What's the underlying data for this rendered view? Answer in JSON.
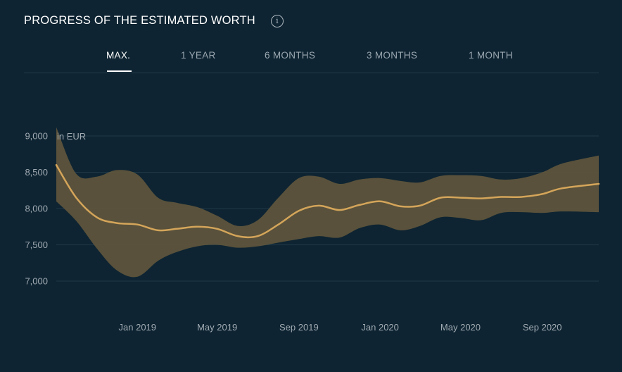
{
  "header": {
    "title": "PROGRESS OF THE ESTIMATED WORTH",
    "info_icon": "info-icon"
  },
  "tabs": [
    {
      "label": "MAX.",
      "active": true
    },
    {
      "label": "1 YEAR",
      "active": false
    },
    {
      "label": "6 MONTHS",
      "active": false
    },
    {
      "label": "3 MONTHS",
      "active": false
    },
    {
      "label": "1 MONTH",
      "active": false
    }
  ],
  "colors": {
    "background": "#0e2432",
    "line": "#d4a55a",
    "band": "#5e543c",
    "gridline": "#203947",
    "axis_text": "#a0aab2"
  },
  "chart_data": {
    "type": "area",
    "unit_label": "in EUR",
    "ylim": [
      6500,
      9400
    ],
    "yticks": [
      {
        "value": 9000,
        "label": "9,000"
      },
      {
        "value": 8500,
        "label": "8,500"
      },
      {
        "value": 8000,
        "label": "8,000"
      },
      {
        "value": 7500,
        "label": "7,500"
      },
      {
        "value": 7000,
        "label": "7,000"
      }
    ],
    "xlim": [
      "2018-09-01",
      "2020-11-25"
    ],
    "xticks": [
      {
        "date": "2019-01-01",
        "label": "Jan 2019"
      },
      {
        "date": "2019-05-01",
        "label": "May 2019"
      },
      {
        "date": "2019-09-01",
        "label": "Sep 2019"
      },
      {
        "date": "2020-01-01",
        "label": "Jan 2020"
      },
      {
        "date": "2020-05-01",
        "label": "May 2020"
      },
      {
        "date": "2020-09-01",
        "label": "Sep 2020"
      }
    ],
    "grid": true,
    "series": [
      {
        "role": "estimate",
        "points": [
          {
            "x": "2018-09-01",
            "y": 8600
          },
          {
            "x": "2018-10-01",
            "y": 8150
          },
          {
            "x": "2018-11-01",
            "y": 7880
          },
          {
            "x": "2018-12-01",
            "y": 7800
          },
          {
            "x": "2019-01-01",
            "y": 7780
          },
          {
            "x": "2019-02-01",
            "y": 7700
          },
          {
            "x": "2019-03-01",
            "y": 7720
          },
          {
            "x": "2019-04-01",
            "y": 7750
          },
          {
            "x": "2019-05-01",
            "y": 7720
          },
          {
            "x": "2019-06-01",
            "y": 7620
          },
          {
            "x": "2019-07-01",
            "y": 7620
          },
          {
            "x": "2019-08-01",
            "y": 7780
          },
          {
            "x": "2019-09-01",
            "y": 7970
          },
          {
            "x": "2019-10-01",
            "y": 8040
          },
          {
            "x": "2019-11-01",
            "y": 7980
          },
          {
            "x": "2019-12-01",
            "y": 8050
          },
          {
            "x": "2020-01-01",
            "y": 8100
          },
          {
            "x": "2020-02-01",
            "y": 8030
          },
          {
            "x": "2020-03-01",
            "y": 8040
          },
          {
            "x": "2020-04-01",
            "y": 8150
          },
          {
            "x": "2020-05-01",
            "y": 8150
          },
          {
            "x": "2020-06-01",
            "y": 8140
          },
          {
            "x": "2020-07-01",
            "y": 8160
          },
          {
            "x": "2020-08-01",
            "y": 8160
          },
          {
            "x": "2020-09-01",
            "y": 8200
          },
          {
            "x": "2020-10-01",
            "y": 8280
          },
          {
            "x": "2020-11-25",
            "y": 8340
          }
        ]
      },
      {
        "role": "range-upper",
        "points": [
          {
            "x": "2018-09-01",
            "y": 9120
          },
          {
            "x": "2018-10-01",
            "y": 8480
          },
          {
            "x": "2018-11-01",
            "y": 8440
          },
          {
            "x": "2018-12-01",
            "y": 8530
          },
          {
            "x": "2019-01-01",
            "y": 8470
          },
          {
            "x": "2019-02-01",
            "y": 8150
          },
          {
            "x": "2019-03-01",
            "y": 8080
          },
          {
            "x": "2019-04-01",
            "y": 8020
          },
          {
            "x": "2019-05-01",
            "y": 7900
          },
          {
            "x": "2019-06-01",
            "y": 7760
          },
          {
            "x": "2019-07-01",
            "y": 7840
          },
          {
            "x": "2019-08-01",
            "y": 8150
          },
          {
            "x": "2019-09-01",
            "y": 8420
          },
          {
            "x": "2019-10-01",
            "y": 8440
          },
          {
            "x": "2019-11-01",
            "y": 8340
          },
          {
            "x": "2019-12-01",
            "y": 8400
          },
          {
            "x": "2020-01-01",
            "y": 8420
          },
          {
            "x": "2020-02-01",
            "y": 8380
          },
          {
            "x": "2020-03-01",
            "y": 8360
          },
          {
            "x": "2020-04-01",
            "y": 8450
          },
          {
            "x": "2020-05-01",
            "y": 8460
          },
          {
            "x": "2020-06-01",
            "y": 8450
          },
          {
            "x": "2020-07-01",
            "y": 8400
          },
          {
            "x": "2020-08-01",
            "y": 8420
          },
          {
            "x": "2020-09-01",
            "y": 8500
          },
          {
            "x": "2020-10-01",
            "y": 8620
          },
          {
            "x": "2020-11-25",
            "y": 8730
          }
        ]
      },
      {
        "role": "range-lower",
        "points": [
          {
            "x": "2018-09-01",
            "y": 8100
          },
          {
            "x": "2018-10-01",
            "y": 7830
          },
          {
            "x": "2018-11-01",
            "y": 7450
          },
          {
            "x": "2018-12-01",
            "y": 7150
          },
          {
            "x": "2019-01-01",
            "y": 7060
          },
          {
            "x": "2019-02-01",
            "y": 7280
          },
          {
            "x": "2019-03-01",
            "y": 7400
          },
          {
            "x": "2019-04-01",
            "y": 7480
          },
          {
            "x": "2019-05-01",
            "y": 7500
          },
          {
            "x": "2019-06-01",
            "y": 7460
          },
          {
            "x": "2019-07-01",
            "y": 7480
          },
          {
            "x": "2019-08-01",
            "y": 7530
          },
          {
            "x": "2019-09-01",
            "y": 7580
          },
          {
            "x": "2019-10-01",
            "y": 7620
          },
          {
            "x": "2019-11-01",
            "y": 7600
          },
          {
            "x": "2019-12-01",
            "y": 7730
          },
          {
            "x": "2020-01-01",
            "y": 7780
          },
          {
            "x": "2020-02-01",
            "y": 7700
          },
          {
            "x": "2020-03-01",
            "y": 7760
          },
          {
            "x": "2020-04-01",
            "y": 7880
          },
          {
            "x": "2020-05-01",
            "y": 7870
          },
          {
            "x": "2020-06-01",
            "y": 7840
          },
          {
            "x": "2020-07-01",
            "y": 7940
          },
          {
            "x": "2020-08-01",
            "y": 7950
          },
          {
            "x": "2020-09-01",
            "y": 7940
          },
          {
            "x": "2020-10-01",
            "y": 7960
          },
          {
            "x": "2020-11-25",
            "y": 7950
          }
        ]
      }
    ]
  }
}
